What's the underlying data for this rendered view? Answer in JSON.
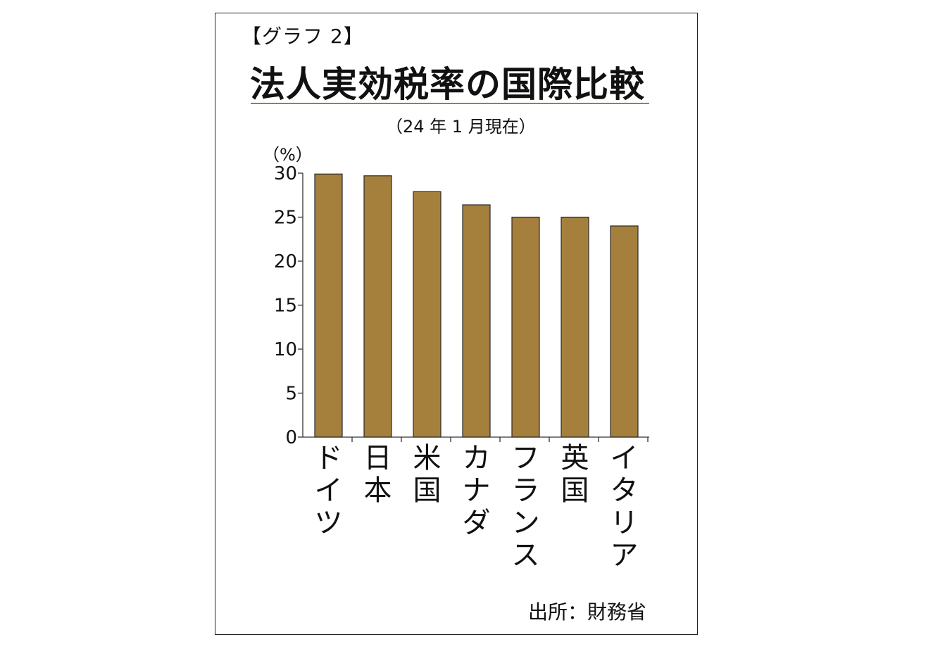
{
  "figure_label": "【グラフ 2】",
  "chart_data": {
    "type": "bar",
    "title": "法人実効税率の国際比較",
    "subtitle": "（24 年 1 月現在）",
    "ylabel": "（%）",
    "xlabel": "",
    "categories": [
      "ドイツ",
      "日本",
      "米国",
      "カナダ",
      "フランス",
      "英国",
      "イタリア"
    ],
    "values": [
      29.9,
      29.7,
      27.9,
      26.4,
      25.0,
      25.0,
      24.0
    ],
    "ylim": [
      0,
      30
    ],
    "yticks": [
      "0",
      "5",
      "10",
      "15",
      "20",
      "25",
      "30"
    ],
    "bar_color": "#a57f3c",
    "grid": false,
    "legend": "none"
  },
  "source": "出所：財務省"
}
